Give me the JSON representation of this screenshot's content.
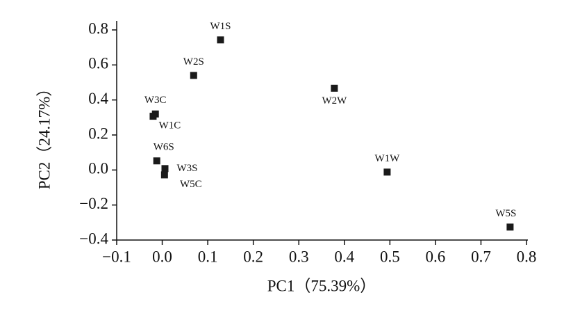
{
  "chart_data": {
    "type": "scatter",
    "x_label": "PC1（75.39%）",
    "y_label": "PC2（24.17%）",
    "xlim": [
      -0.1,
      0.8
    ],
    "xticks": [
      {
        "value": -0.1,
        "label": "−0.1"
      },
      {
        "value": 0,
        "label": "0.0"
      },
      0.1,
      0.2,
      0.3,
      0.4,
      0.5,
      0.6,
      0.7,
      0.8
    ],
    "ylim": [
      -0.4,
      0.8
    ],
    "yticks": [
      {
        "value": -0.4,
        "label": "−0.4"
      },
      {
        "value": -0.2,
        "label": "−0.2"
      },
      {
        "value": 0,
        "label": "0.0"
      },
      0.2,
      0.4,
      0.6,
      0.8
    ],
    "series": [
      {
        "color": "#1a1a1a",
        "labels": [
          "W1S",
          "W2S",
          "W2W",
          "W3C",
          "W1C",
          "W6S",
          "W3S",
          "W5C",
          "W1W",
          "W5S"
        ],
        "x": [
          0.128,
          0.069,
          0.378,
          -0.015,
          -0.02,
          -0.012,
          0.006,
          0.005,
          0.494,
          0.764
        ],
        "values": [
          0.743,
          0.54,
          0.467,
          0.32,
          0.307,
          0.052,
          0.008,
          -0.028,
          -0.012,
          -0.326
        ]
      }
    ]
  }
}
